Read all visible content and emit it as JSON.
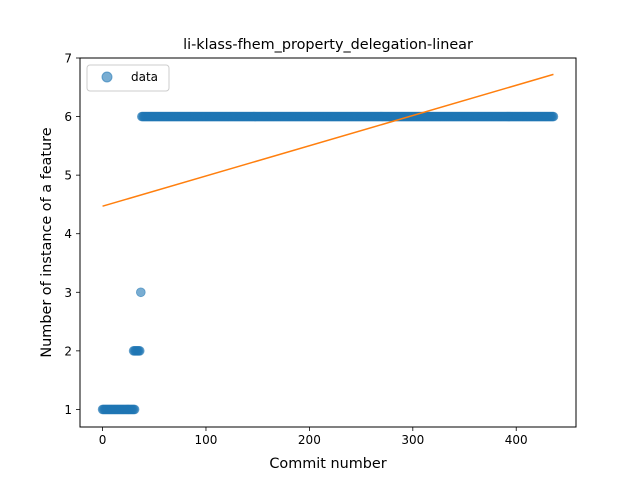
{
  "chart_data": {
    "type": "scatter",
    "title": "li-klass-fhem_property_delegation-linear",
    "xlabel": "Commit number",
    "ylabel": "Number of instance of a feature",
    "xlim": [
      -21.8,
      457.8
    ],
    "ylim": [
      0.7,
      7.0
    ],
    "xticks": [
      0,
      100,
      200,
      300,
      400
    ],
    "yticks": [
      1,
      2,
      3,
      4,
      5,
      6,
      7
    ],
    "grid": false,
    "legend": {
      "position": "top-left",
      "entries": [
        "data"
      ]
    },
    "colors": {
      "data": "#1f77b4",
      "fit": "#ff7f0e"
    },
    "series": [
      {
        "name": "data",
        "kind": "scatter",
        "segments": [
          {
            "x_start": 0,
            "x_end": 31,
            "y": 1
          },
          {
            "x_start": 30,
            "x_end": 36,
            "y": 2
          },
          {
            "x_start": 37,
            "x_end": 37,
            "y": 3
          },
          {
            "x_start": 38,
            "x_end": 436,
            "y": 6
          }
        ]
      },
      {
        "kind": "line",
        "x": [
          0,
          436
        ],
        "y": [
          4.47,
          6.72
        ]
      }
    ]
  }
}
